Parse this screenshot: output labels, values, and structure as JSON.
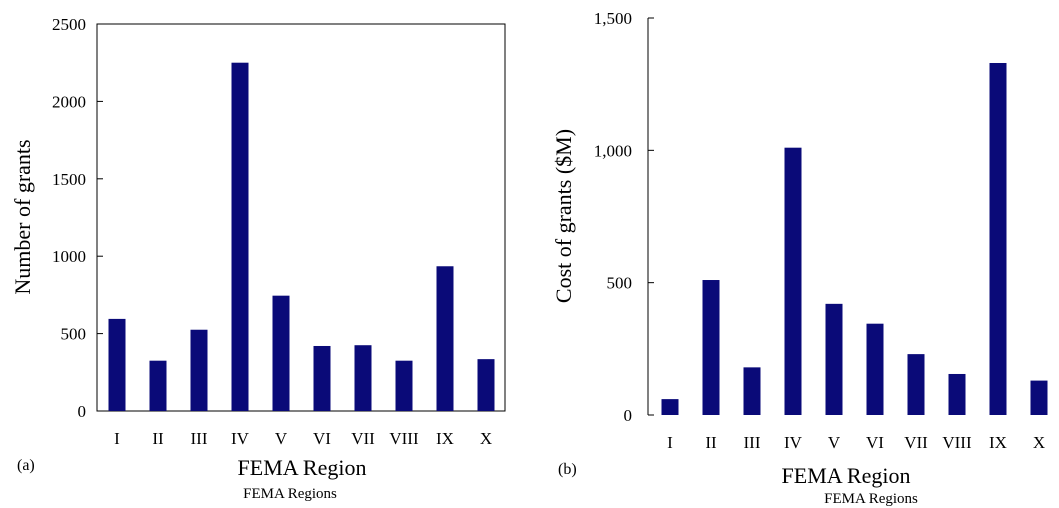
{
  "colors": {
    "bar": "#0a0a78",
    "axis": "#000000"
  },
  "chart_data": [
    {
      "type": "bar",
      "panel_label": "(a)",
      "categories": [
        "I",
        "II",
        "III",
        "IV",
        "V",
        "VI",
        "VII",
        "VIII",
        "IX",
        "X"
      ],
      "values": [
        595,
        325,
        525,
        2250,
        745,
        420,
        425,
        325,
        935,
        335
      ],
      "ylabel": "Number of grants",
      "xlabel": "FEMA Region",
      "caption": "FEMA Regions",
      "ylim": [
        0,
        2500
      ],
      "yticks": [
        0,
        500,
        1000,
        1500,
        2000,
        2500
      ],
      "ytick_labels": [
        "0",
        "500",
        "1000",
        "1500",
        "2000",
        "2500"
      ],
      "grid": false,
      "legend": "none"
    },
    {
      "type": "bar",
      "panel_label": "(b)",
      "categories": [
        "I",
        "II",
        "III",
        "IV",
        "V",
        "VI",
        "VII",
        "VIII",
        "IX",
        "X"
      ],
      "values": [
        60,
        510,
        180,
        1010,
        420,
        345,
        230,
        155,
        1330,
        130
      ],
      "ylabel": "Cost of grants ($M)",
      "xlabel": "FEMA Region",
      "caption": "FEMA Regions",
      "ylim": [
        0,
        1500
      ],
      "yticks": [
        0,
        500,
        1000,
        1500
      ],
      "ytick_labels": [
        "0",
        "500",
        "1,000",
        "1,500"
      ],
      "grid": false,
      "legend": "none"
    }
  ]
}
